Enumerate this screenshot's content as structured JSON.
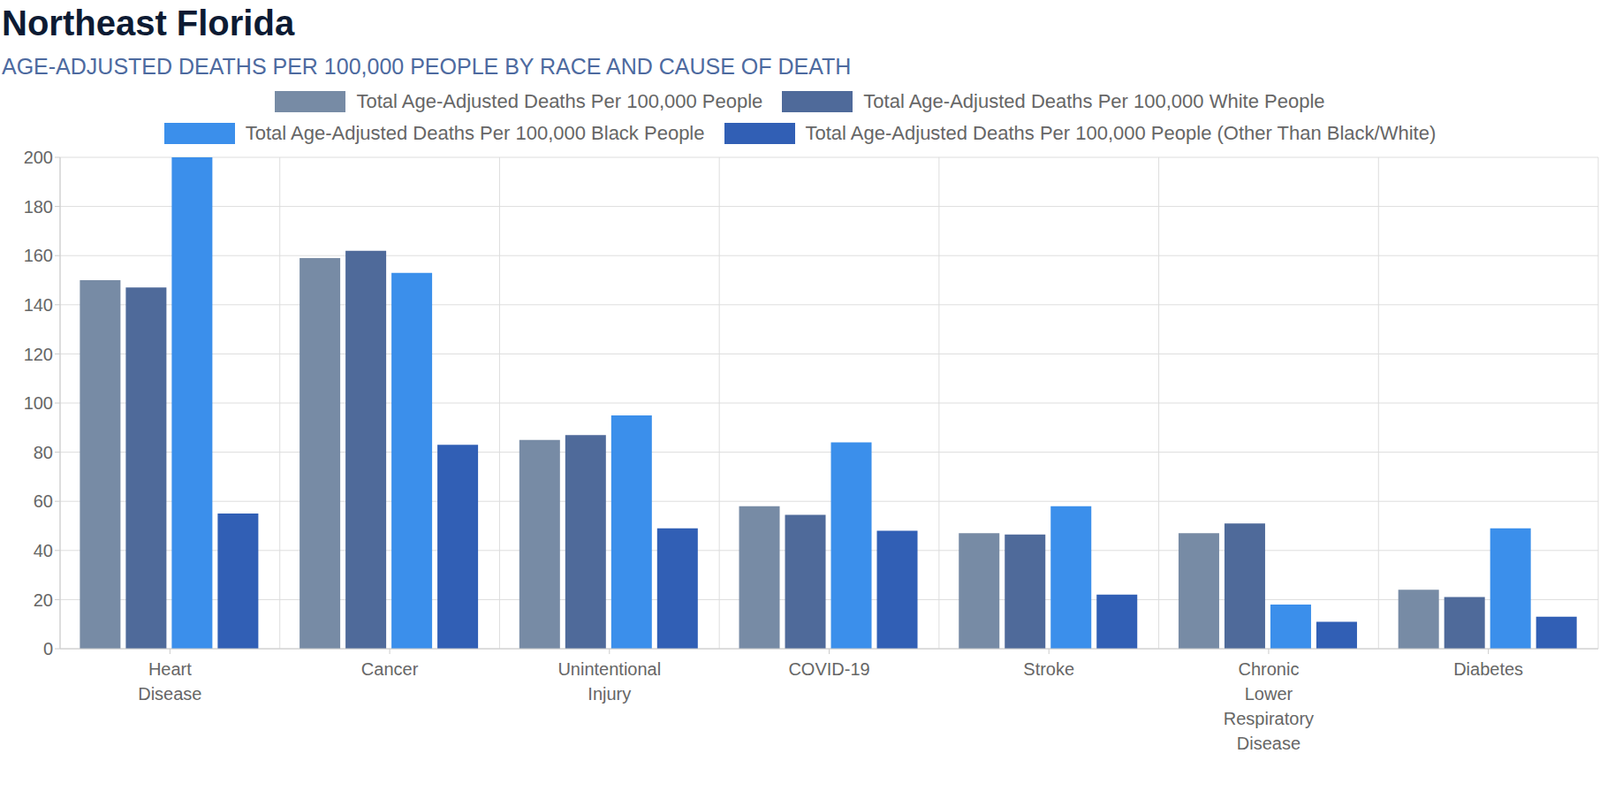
{
  "chart_data": {
    "type": "bar",
    "title": "Northeast Florida",
    "subtitle": "AGE-ADJUSTED DEATHS PER 100,000 PEOPLE BY RACE AND CAUSE OF DEATH",
    "categories": [
      "Heart Disease",
      "Cancer",
      "Unintentional Injury",
      "COVID-19",
      "Stroke",
      "Chronic Lower Respiratory Disease",
      "Diabetes"
    ],
    "series": [
      {
        "name": "Total Age-Adjusted Deaths Per 100,000 People",
        "color": "#778ba5",
        "values": [
          150,
          159,
          85,
          58,
          47,
          47,
          24
        ]
      },
      {
        "name": "Total Age-Adjusted Deaths Per 100,000 White People",
        "color": "#4f6a9a",
        "values": [
          147,
          162,
          87,
          54.5,
          46.5,
          51,
          21
        ]
      },
      {
        "name": "Total Age-Adjusted Deaths Per 100,000 Black People",
        "color": "#3b8feb",
        "values": [
          200,
          153,
          95,
          84,
          58,
          18,
          49
        ]
      },
      {
        "name": "Total Age-Adjusted Deaths Per 100,000 People (Other Than Black/White)",
        "color": "#315fb5",
        "values": [
          55,
          83,
          49,
          48,
          22,
          11,
          13
        ]
      }
    ],
    "ylim": [
      0,
      200
    ],
    "yticks": [
      0,
      20,
      40,
      60,
      80,
      100,
      120,
      140,
      160,
      180,
      200
    ],
    "grid": true,
    "legend": "top"
  }
}
